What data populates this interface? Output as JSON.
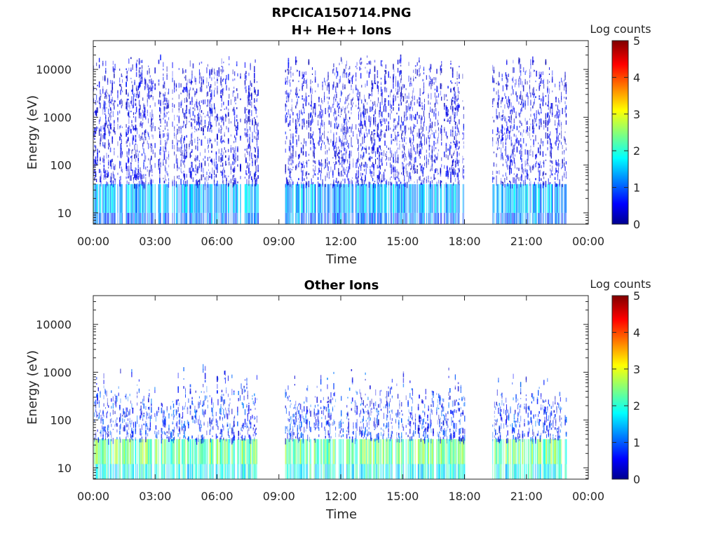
{
  "file_title": "RPCICA150714.PNG",
  "chart_data": [
    {
      "type": "heatmap",
      "title": "H+ He++ Ions",
      "xlabel": "Time",
      "ylabel": "Energy (eV)",
      "x_ticks": [
        "00:00",
        "03:00",
        "06:00",
        "09:00",
        "12:00",
        "15:00",
        "18:00",
        "21:00",
        "00:00"
      ],
      "x_range_hours": [
        0,
        24
      ],
      "y_scale": "log",
      "y_ticks": [
        "10",
        "100",
        "1000",
        "10000"
      ],
      "y_range": [
        5.8,
        40000
      ],
      "colorbar": {
        "label": "Log counts",
        "ticks": [
          "0",
          "1",
          "2",
          "3",
          "4",
          "5"
        ],
        "range": [
          0,
          5
        ],
        "colormap": "jet"
      },
      "data_coverage_hours": [
        [
          0.0,
          8.0
        ],
        [
          9.3,
          18.0
        ],
        [
          19.35,
          22.95
        ]
      ],
      "typical_log_counts": {
        "low_energy_band_eV": [
          10,
          40
        ],
        "low_energy_value": 1.5,
        "high_energy_value": 0.2
      }
    },
    {
      "type": "heatmap",
      "title": "Other Ions",
      "xlabel": "Time",
      "ylabel": "Energy (eV)",
      "x_ticks": [
        "00:00",
        "03:00",
        "06:00",
        "09:00",
        "12:00",
        "15:00",
        "18:00",
        "21:00",
        "00:00"
      ],
      "x_range_hours": [
        0,
        24
      ],
      "y_scale": "log",
      "y_ticks": [
        "10",
        "100",
        "1000",
        "10000"
      ],
      "y_range": [
        5.8,
        40000
      ],
      "colorbar": {
        "label": "Log counts",
        "ticks": [
          "0",
          "1",
          "2",
          "3",
          "4",
          "5"
        ],
        "range": [
          0,
          5
        ],
        "colormap": "jet"
      },
      "data_coverage_hours": [
        [
          0.0,
          8.0
        ],
        [
          9.3,
          18.0
        ],
        [
          19.35,
          22.95
        ]
      ],
      "typical_log_counts": {
        "low_energy_band_eV": [
          12,
          40
        ],
        "low_energy_value": 2.4,
        "high_energy_value": 0.3
      }
    }
  ]
}
